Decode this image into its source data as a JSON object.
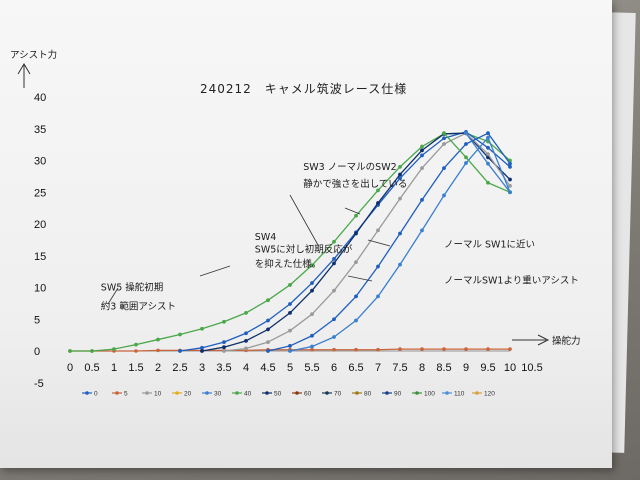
{
  "chart_data": {
    "type": "line",
    "title": "240212　キャメル筑波レース仕様",
    "ylabel": "アシスト力",
    "xlabel": "操舵力",
    "xlim": [
      0,
      10.5
    ],
    "ylim": [
      -5,
      40
    ],
    "x_ticks": [
      "0",
      "0.5",
      "1",
      "1.5",
      "2",
      "2.5",
      "3",
      "3.5",
      "4",
      "4.5",
      "5",
      "5.5",
      "6",
      "6.5",
      "7",
      "7.5",
      "8",
      "8.5",
      "9",
      "9.5",
      "10",
      "10.5"
    ],
    "y_ticks": [
      "-5",
      "0",
      "5",
      "10",
      "15",
      "20",
      "25",
      "30",
      "35",
      "40"
    ],
    "x": [
      0,
      0.5,
      1,
      1.5,
      2,
      2.5,
      3,
      3.5,
      4,
      4.5,
      5,
      5.5,
      6,
      6.5,
      7,
      7.5,
      8,
      8.5,
      9,
      9.5,
      10
    ],
    "series": [
      {
        "name": "0",
        "color": "#1f5fbf",
        "values": [
          0,
          0,
          0,
          0,
          0,
          0,
          0,
          0,
          0,
          0,
          0,
          0,
          0,
          0,
          0,
          0,
          0,
          0,
          0,
          0,
          0
        ]
      },
      {
        "name": "5",
        "color": "#c8643c",
        "values": [
          0,
          0,
          0,
          0,
          0.1,
          0.1,
          0.1,
          0.1,
          0.1,
          0.2,
          0.2,
          0.2,
          0.2,
          0.2,
          0.2,
          0.3,
          0.3,
          0.3,
          0.3,
          0.3,
          0.3
        ]
      },
      {
        "name": "10",
        "color": "#9a9a9a",
        "values": [
          0,
          0,
          0,
          0,
          0,
          0,
          0,
          0,
          0,
          0,
          0,
          0,
          0,
          0,
          0,
          0,
          0,
          0,
          0,
          0,
          0
        ]
      },
      {
        "name": "20",
        "color": "#e0b020",
        "values": [
          0,
          0,
          0,
          0,
          0,
          0,
          0,
          0,
          0,
          0,
          0,
          0,
          0,
          0,
          0,
          0,
          0,
          0,
          0,
          0,
          0
        ]
      },
      {
        "name": "30",
        "color": "#3a7fd0",
        "values": [
          0,
          0,
          0,
          0,
          0,
          0,
          0,
          0,
          0,
          0,
          0,
          0,
          0,
          0,
          0,
          0,
          0,
          0,
          0,
          0,
          0
        ]
      },
      {
        "name": "40",
        "color": "#4aa84a",
        "values": [
          0,
          0,
          0.3,
          1,
          1.8,
          2.6,
          3.5,
          4.6,
          6,
          8,
          10.4,
          13.5,
          17.2,
          21.3,
          25.3,
          29,
          32.2,
          34.2,
          34.3,
          33,
          30
        ]
      },
      {
        "name": "50",
        "color": "#0d2f6b",
        "values": [
          0,
          0,
          0,
          0,
          0,
          0,
          0,
          0,
          0,
          0,
          0,
          0,
          0,
          0,
          0,
          0,
          0,
          0,
          0,
          0,
          0
        ]
      },
      {
        "name": "60",
        "color": "#8a3a10",
        "values": [
          0,
          0,
          0,
          0,
          0,
          0,
          0,
          0,
          0,
          0,
          0,
          0,
          0,
          0,
          0,
          0,
          0,
          0,
          0,
          0,
          0
        ]
      },
      {
        "name": "70",
        "color": "#1a3a5a",
        "values": [
          0,
          0,
          0,
          0,
          0,
          0,
          0,
          0,
          0,
          0,
          0,
          0,
          0,
          0,
          0,
          0,
          0,
          0,
          0,
          0,
          0
        ]
      },
      {
        "name": "80",
        "color": "#a07818",
        "values": [
          0,
          0,
          0,
          0,
          0,
          0,
          0,
          0,
          0,
          0,
          0,
          0,
          0,
          0,
          0,
          0,
          0,
          0,
          0,
          0,
          0
        ]
      },
      {
        "name": "90",
        "color": "#163f8a",
        "values": [
          0,
          0,
          0,
          0,
          0,
          0,
          0,
          0,
          0,
          0,
          0,
          0,
          0,
          0,
          0,
          0,
          0,
          0,
          0,
          0,
          0
        ]
      },
      {
        "name": "100",
        "color": "#3d8f3d",
        "values": [
          0,
          0,
          0,
          0,
          0,
          0,
          0,
          0,
          0,
          0,
          0,
          0,
          0,
          0,
          0,
          0,
          0,
          0,
          0,
          0,
          0
        ]
      },
      {
        "name": "110",
        "color": "#4a8fd6",
        "values": [
          0,
          0,
          0,
          0,
          0,
          0,
          0,
          0,
          0,
          0,
          0,
          0,
          0,
          0,
          0,
          0,
          0,
          0,
          0,
          0,
          0
        ]
      },
      {
        "name": "120",
        "color": "#d8a040",
        "values": [
          0,
          0,
          0,
          0,
          0,
          0,
          0,
          0,
          0,
          0,
          0,
          0,
          0,
          0,
          0,
          0,
          0,
          0,
          0,
          0,
          0
        ]
      }
    ],
    "curves": [
      {
        "color": "#4aa84a",
        "x": [
          0,
          0.5,
          1,
          1.5,
          2,
          2.5,
          3,
          3.5,
          4,
          4.5,
          5,
          5.5,
          6,
          6.5,
          7,
          7.5,
          8,
          8.5,
          9,
          9.5,
          10
        ],
        "y": [
          0,
          0,
          0.3,
          1,
          1.8,
          2.6,
          3.5,
          4.6,
          6,
          8,
          10.4,
          13.5,
          17.2,
          21.3,
          25.3,
          29,
          32.2,
          34.2,
          34.3,
          33,
          30
        ]
      },
      {
        "color": "#1f5fbf",
        "x": [
          2.5,
          3,
          3.5,
          4,
          4.5,
          5,
          5.5,
          6,
          6.5,
          7,
          7.5,
          8,
          8.5,
          9,
          9.5,
          10
        ],
        "y": [
          0,
          0.5,
          1.4,
          2.8,
          4.8,
          7.4,
          10.7,
          14.5,
          18.7,
          23,
          27.2,
          30.8,
          33.5,
          34.5,
          32,
          29
        ]
      },
      {
        "color": "#0d2f6b",
        "x": [
          3,
          3.5,
          4,
          4.5,
          5,
          5.5,
          6,
          6.5,
          7,
          7.5,
          8,
          8.5,
          9,
          9.5,
          10
        ],
        "y": [
          0,
          0.6,
          1.6,
          3.4,
          6,
          9.5,
          13.8,
          18.5,
          23.3,
          27.8,
          31.6,
          34.2,
          34.3,
          30.5,
          27
        ]
      },
      {
        "color": "#9a9a9a",
        "x": [
          3.5,
          4,
          4.5,
          5,
          5.5,
          6,
          6.5,
          7,
          7.5,
          8,
          8.5,
          9,
          9.5,
          10
        ],
        "y": [
          0,
          0.4,
          1.4,
          3.2,
          5.8,
          9.5,
          14,
          19,
          24,
          28.8,
          32.6,
          34.3,
          31,
          26
        ]
      },
      {
        "color": "#1f5fbf",
        "x": [
          4.5,
          5,
          5.5,
          6,
          6.5,
          7,
          7.5,
          8,
          8.5,
          9,
          9.5,
          10
        ],
        "y": [
          0,
          0.8,
          2.4,
          5,
          8.6,
          13.3,
          18.5,
          23.8,
          28.8,
          32.6,
          34.3,
          29.5
        ]
      },
      {
        "color": "#3a7fd0",
        "x": [
          5,
          5.5,
          6,
          6.5,
          7,
          7.5,
          8,
          8.5,
          9,
          9.5,
          10
        ],
        "y": [
          0,
          0.7,
          2.2,
          4.8,
          8.6,
          13.6,
          19,
          24.5,
          29.6,
          33.6,
          25
        ]
      },
      {
        "color": "#4aa84a",
        "x": [
          8.5,
          9,
          9.5,
          10
        ],
        "y": [
          34.3,
          30.5,
          26.5,
          25
        ]
      },
      {
        "color": "#3a7fd0",
        "x": [
          9,
          9.5,
          10
        ],
        "y": [
          34.3,
          29.5,
          25
        ]
      }
    ],
    "legend_position": "bottom",
    "annotations": [
      {
        "text": "SW5 操舵初期",
        "x": 0.7,
        "y": 9.5
      },
      {
        "text": "約3 範囲アシスト",
        "x": 0.7,
        "y": 6.5
      },
      {
        "text": "SW4",
        "x": 4.2,
        "y": 17.5
      },
      {
        "text": "SW5に対し初期反応が",
        "x": 4.2,
        "y": 15.5
      },
      {
        "text": "を抑えた仕様。",
        "x": 4.2,
        "y": 13.2
      },
      {
        "text": "SW3 ノーマルのSW2",
        "x": 5.3,
        "y": 28.5
      },
      {
        "text": "静かで強さを出している",
        "x": 5.3,
        "y": 25.8
      },
      {
        "text": "ノーマル SW1に近い",
        "x": 8.5,
        "y": 16.3
      },
      {
        "text": "ノーマルSW1より重いアシスト",
        "x": 8.5,
        "y": 10.6
      }
    ]
  }
}
